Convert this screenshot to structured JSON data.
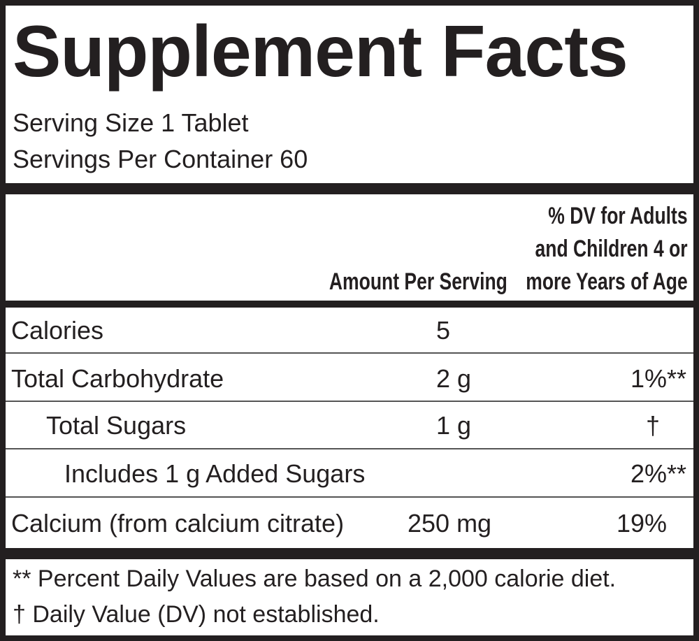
{
  "header": {
    "title": "Supplement Facts",
    "serving_size": "Serving Size 1 Tablet",
    "servings_per_container": "Servings Per Container 60"
  },
  "table": {
    "amount_header": "Amount Per Serving",
    "dv_header": [
      "% DV for Adults",
      "and Children 4 or",
      "more Years of Age"
    ],
    "rows": [
      {
        "name": "Calories",
        "amount": "5"
      },
      {
        "name": "Total Carbohydrate",
        "amount": "2 g",
        "dv": "1%**"
      },
      {
        "name": "Total Sugars",
        "amount": "1 g",
        "dv": "†"
      },
      {
        "name": "Includes 1 g Added Sugars",
        "dv": "2%**"
      },
      {
        "name": "Calcium (from calcium citrate)",
        "amount": "250 mg",
        "dv": "19%"
      }
    ]
  },
  "footnotes": [
    "** Percent Daily Values are based on a 2,000 calorie diet.",
    "† Daily Value (DV) not established."
  ]
}
